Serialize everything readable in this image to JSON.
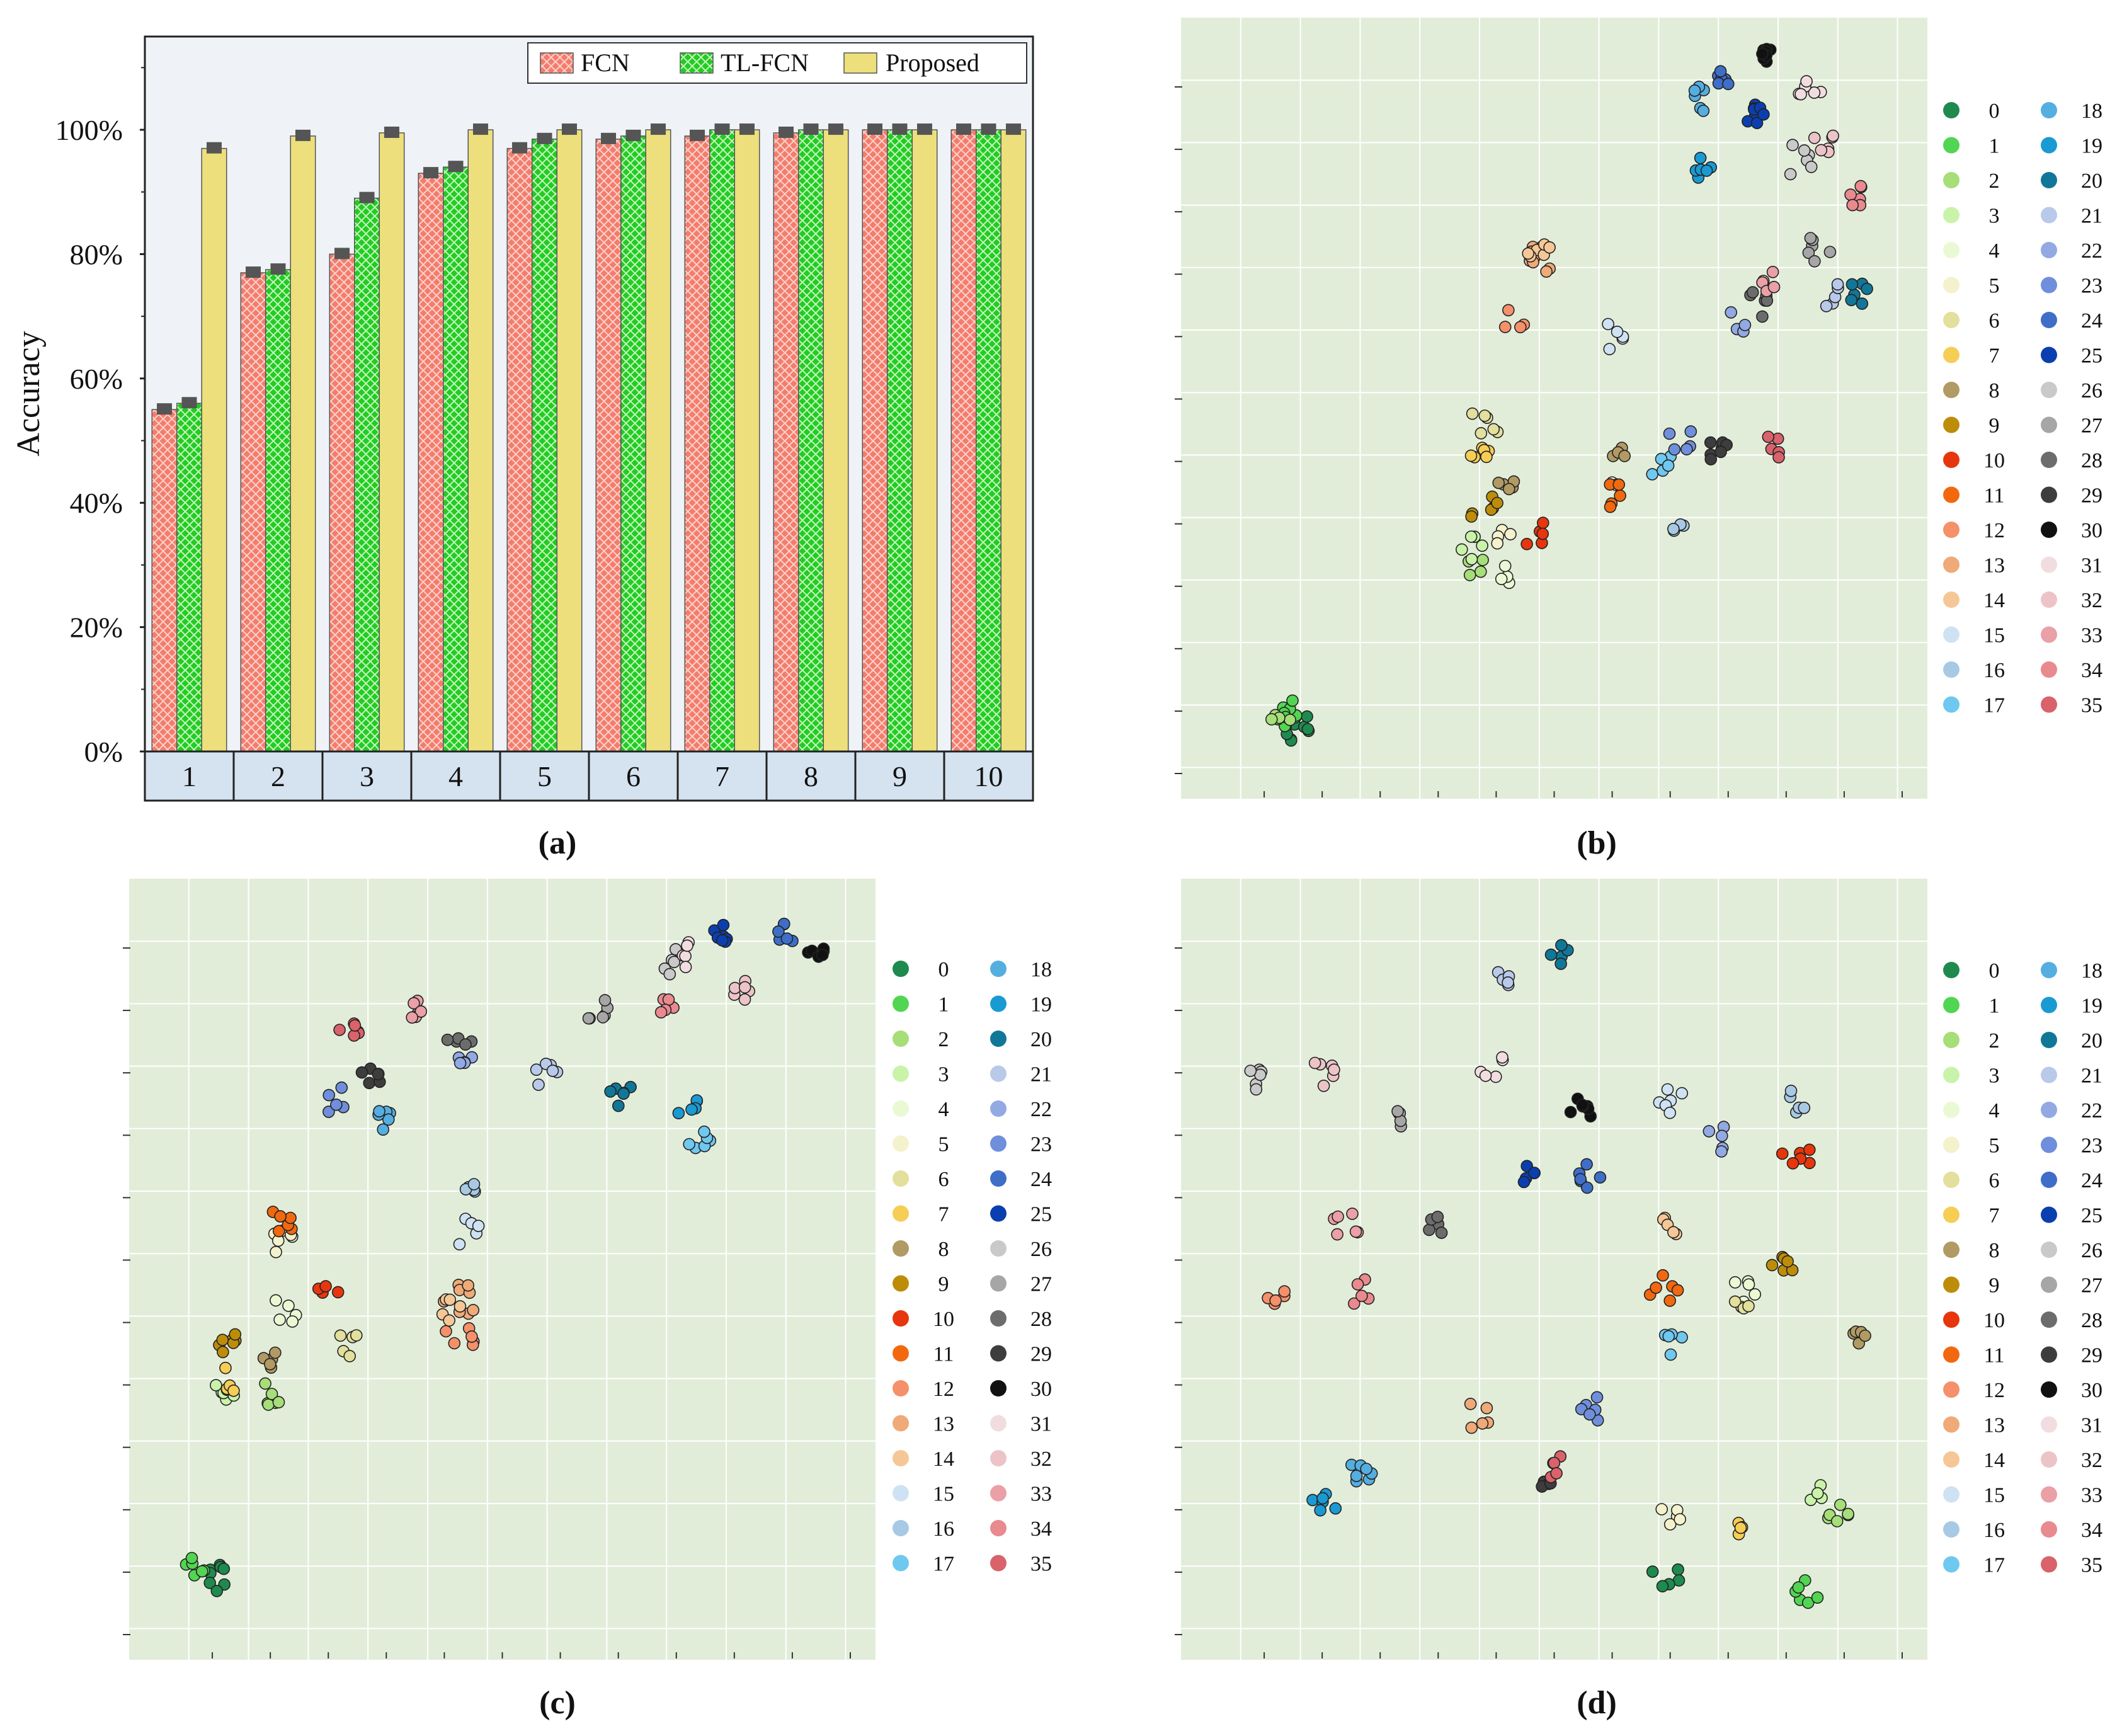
{
  "colors": {
    "fcn": "#f47c6c",
    "tl_fcn": "#22cc22",
    "proposed": "#ecdf7c",
    "plot_bg_a": "#eff3f7",
    "plot_bg_tsne": "#e2edd9",
    "xcell": "#d5e2ef",
    "errbar": "#555555"
  },
  "classes": [
    {
      "id": "0",
      "color": "#1e8a4e"
    },
    {
      "id": "1",
      "color": "#52d552"
    },
    {
      "id": "2",
      "color": "#a6de78"
    },
    {
      "id": "3",
      "color": "#c9f3a9"
    },
    {
      "id": "4",
      "color": "#e9f9d4"
    },
    {
      "id": "5",
      "color": "#f4f1cd"
    },
    {
      "id": "6",
      "color": "#e3df9c"
    },
    {
      "id": "7",
      "color": "#f6cd55"
    },
    {
      "id": "8",
      "color": "#b19a63"
    },
    {
      "id": "9",
      "color": "#bd8d0a"
    },
    {
      "id": "10",
      "color": "#e7360d"
    },
    {
      "id": "11",
      "color": "#f2680f"
    },
    {
      "id": "12",
      "color": "#f4906a"
    },
    {
      "id": "13",
      "color": "#efaa78"
    },
    {
      "id": "14",
      "color": "#f6c796"
    },
    {
      "id": "15",
      "color": "#cfe2f3"
    },
    {
      "id": "16",
      "color": "#a8c9e4"
    },
    {
      "id": "17",
      "color": "#6fc8ef"
    },
    {
      "id": "18",
      "color": "#55aee0"
    },
    {
      "id": "19",
      "color": "#1a9ad2"
    },
    {
      "id": "20",
      "color": "#107798"
    },
    {
      "id": "21",
      "color": "#b9c9ea"
    },
    {
      "id": "22",
      "color": "#92a9e3"
    },
    {
      "id": "23",
      "color": "#6f8fdc"
    },
    {
      "id": "24",
      "color": "#3e6ec8"
    },
    {
      "id": "25",
      "color": "#0b3fb0"
    },
    {
      "id": "26",
      "color": "#c9c9c9"
    },
    {
      "id": "27",
      "color": "#a6a6a6"
    },
    {
      "id": "28",
      "color": "#6c6c6c"
    },
    {
      "id": "29",
      "color": "#3d3d3d"
    },
    {
      "id": "30",
      "color": "#111111"
    },
    {
      "id": "31",
      "color": "#f1dde0"
    },
    {
      "id": "32",
      "color": "#ecc4c8"
    },
    {
      "id": "33",
      "color": "#eaa0a6"
    },
    {
      "id": "34",
      "color": "#e88a8e"
    },
    {
      "id": "35",
      "color": "#d9626b"
    }
  ],
  "panels": {
    "a": {
      "label": "(a)"
    },
    "b": {
      "label": "(b)"
    },
    "c": {
      "label": "(c)"
    },
    "d": {
      "label": "(d)"
    }
  },
  "chart_data": [
    {
      "type": "bar",
      "panel": "a",
      "title": "",
      "xlabel": "",
      "ylabel": "Accuracy",
      "categories": [
        "1",
        "2",
        "3",
        "4",
        "5",
        "6",
        "7",
        "8",
        "9",
        "10"
      ],
      "ylim": [
        0,
        1.15
      ],
      "yticks": [
        0,
        0.2,
        0.4,
        0.6,
        0.8,
        1.0
      ],
      "ytick_labels": [
        "0%",
        "20%",
        "40%",
        "60%",
        "80%",
        "100%"
      ],
      "legend_position": "top-right",
      "series": [
        {
          "name": "FCN",
          "values": [
            0.55,
            0.77,
            0.8,
            0.93,
            0.97,
            0.985,
            0.99,
            0.995,
            1.0,
            1.0
          ]
        },
        {
          "name": "TL-FCN",
          "values": [
            0.56,
            0.775,
            0.89,
            0.94,
            0.985,
            0.99,
            1.0,
            1.0,
            1.0,
            1.0
          ]
        },
        {
          "name": "Proposed",
          "values": [
            0.97,
            0.99,
            0.995,
            1.0,
            1.0,
            1.0,
            1.0,
            1.0,
            1.0,
            1.0
          ]
        }
      ]
    },
    {
      "type": "scatter",
      "panel": "b",
      "title": "",
      "xlabel": "",
      "ylabel": "",
      "xlim": [
        0,
        100
      ],
      "ylim": [
        0,
        100
      ],
      "legend_position": "right",
      "clusters": [
        {
          "cls": 0,
          "x": 13,
          "y": 6,
          "n": 9,
          "s": 1.5
        },
        {
          "cls": 1,
          "x": 12,
          "y": 8,
          "n": 9,
          "s": 1.5
        },
        {
          "cls": 2,
          "x": 11,
          "y": 7,
          "n": 4,
          "s": 1.2
        },
        {
          "cls": 2,
          "x": 39,
          "y": 28,
          "n": 4,
          "s": 1.2
        },
        {
          "cls": 3,
          "x": 38,
          "y": 31,
          "n": 5,
          "s": 1.3
        },
        {
          "cls": 4,
          "x": 44,
          "y": 27,
          "n": 4,
          "s": 1.3
        },
        {
          "cls": 5,
          "x": 43,
          "y": 32,
          "n": 4,
          "s": 1.3
        },
        {
          "cls": 5,
          "x": 58,
          "y": 41,
          "n": 3,
          "s": 1.2
        },
        {
          "cls": 6,
          "x": 40,
          "y": 48,
          "n": 6,
          "s": 1.5
        },
        {
          "cls": 7,
          "x": 40,
          "y": 44,
          "n": 6,
          "s": 1.5
        },
        {
          "cls": 8,
          "x": 43,
          "y": 40,
          "n": 5,
          "s": 1.2
        },
        {
          "cls": 8,
          "x": 59,
          "y": 44,
          "n": 4,
          "s": 1.1
        },
        {
          "cls": 9,
          "x": 40,
          "y": 36,
          "n": 6,
          "s": 1.4
        },
        {
          "cls": 10,
          "x": 47,
          "y": 33,
          "n": 5,
          "s": 1.2
        },
        {
          "cls": 11,
          "x": 59,
          "y": 38,
          "n": 5,
          "s": 1.3
        },
        {
          "cls": 12,
          "x": 44,
          "y": 62,
          "n": 4,
          "s": 1.1
        },
        {
          "cls": 13,
          "x": 47,
          "y": 70,
          "n": 8,
          "s": 1.6
        },
        {
          "cls": 14,
          "x": 48,
          "y": 72,
          "n": 6,
          "s": 1.5
        },
        {
          "cls": 15,
          "x": 58,
          "y": 60,
          "n": 5,
          "s": 1.4
        },
        {
          "cls": 16,
          "x": 67,
          "y": 34,
          "n": 4,
          "s": 1.4
        },
        {
          "cls": 17,
          "x": 65,
          "y": 42,
          "n": 5,
          "s": 1.5
        },
        {
          "cls": 18,
          "x": 71,
          "y": 92,
          "n": 6,
          "s": 1.3
        },
        {
          "cls": 19,
          "x": 71,
          "y": 83,
          "n": 6,
          "s": 1.1
        },
        {
          "cls": 20,
          "x": 94,
          "y": 66,
          "n": 6,
          "s": 1.2
        },
        {
          "cls": 21,
          "x": 89,
          "y": 66,
          "n": 5,
          "s": 1.3
        },
        {
          "cls": 22,
          "x": 76,
          "y": 62,
          "n": 4,
          "s": 1.2
        },
        {
          "cls": 23,
          "x": 68,
          "y": 46,
          "n": 5,
          "s": 1.3
        },
        {
          "cls": 24,
          "x": 75,
          "y": 95,
          "n": 6,
          "s": 1.2
        },
        {
          "cls": 25,
          "x": 79,
          "y": 90,
          "n": 8,
          "s": 1.0
        },
        {
          "cls": 26,
          "x": 85,
          "y": 84,
          "n": 6,
          "s": 1.4
        },
        {
          "cls": 27,
          "x": 88,
          "y": 72,
          "n": 6,
          "s": 1.3
        },
        {
          "cls": 28,
          "x": 79,
          "y": 64,
          "n": 6,
          "s": 1.3
        },
        {
          "cls": 29,
          "x": 74,
          "y": 44,
          "n": 7,
          "s": 1.3
        },
        {
          "cls": 30,
          "x": 80,
          "y": 98,
          "n": 8,
          "s": 1.0
        },
        {
          "cls": 31,
          "x": 87,
          "y": 93,
          "n": 6,
          "s": 1.2
        },
        {
          "cls": 32,
          "x": 89,
          "y": 86,
          "n": 6,
          "s": 1.2
        },
        {
          "cls": 33,
          "x": 81,
          "y": 67,
          "n": 5,
          "s": 1.1
        },
        {
          "cls": 34,
          "x": 93,
          "y": 79,
          "n": 6,
          "s": 1.1
        },
        {
          "cls": 35,
          "x": 82,
          "y": 45,
          "n": 5,
          "s": 1.1
        }
      ]
    },
    {
      "type": "scatter",
      "panel": "c",
      "title": "",
      "xlabel": "",
      "ylabel": "",
      "xlim": [
        0,
        100
      ],
      "ylim": [
        0,
        100
      ],
      "legend_position": "right",
      "clusters": [
        {
          "cls": 0,
          "x": 9,
          "y": 8,
          "n": 8,
          "s": 1.3
        },
        {
          "cls": 1,
          "x": 6,
          "y": 9,
          "n": 6,
          "s": 1.3
        },
        {
          "cls": 2,
          "x": 17,
          "y": 33,
          "n": 6,
          "s": 1.2
        },
        {
          "cls": 3,
          "x": 10,
          "y": 33,
          "n": 6,
          "s": 1.2
        },
        {
          "cls": 4,
          "x": 19,
          "y": 44,
          "n": 5,
          "s": 1.5
        },
        {
          "cls": 5,
          "x": 18,
          "y": 54,
          "n": 6,
          "s": 1.3
        },
        {
          "cls": 6,
          "x": 28,
          "y": 40,
          "n": 5,
          "s": 1.2
        },
        {
          "cls": 7,
          "x": 11,
          "y": 35,
          "n": 5,
          "s": 1.3
        },
        {
          "cls": 8,
          "x": 17,
          "y": 37,
          "n": 5,
          "s": 1.1
        },
        {
          "cls": 9,
          "x": 11,
          "y": 40,
          "n": 7,
          "s": 1.4
        },
        {
          "cls": 10,
          "x": 25,
          "y": 47,
          "n": 4,
          "s": 1.0
        },
        {
          "cls": 11,
          "x": 18,
          "y": 56,
          "n": 6,
          "s": 1.3
        },
        {
          "cls": 12,
          "x": 44,
          "y": 41,
          "n": 6,
          "s": 1.4
        },
        {
          "cls": 13,
          "x": 44,
          "y": 46,
          "n": 8,
          "s": 1.6
        },
        {
          "cls": 14,
          "x": 43,
          "y": 44,
          "n": 5,
          "s": 1.5
        },
        {
          "cls": 15,
          "x": 45,
          "y": 55,
          "n": 5,
          "s": 1.3
        },
        {
          "cls": 16,
          "x": 45,
          "y": 62,
          "n": 5,
          "s": 1.2
        },
        {
          "cls": 17,
          "x": 78,
          "y": 68,
          "n": 6,
          "s": 1.2
        },
        {
          "cls": 18,
          "x": 33,
          "y": 70,
          "n": 6,
          "s": 1.2
        },
        {
          "cls": 19,
          "x": 77,
          "y": 72,
          "n": 5,
          "s": 1.2
        },
        {
          "cls": 20,
          "x": 67,
          "y": 74,
          "n": 6,
          "s": 1.2
        },
        {
          "cls": 21,
          "x": 56,
          "y": 76,
          "n": 6,
          "s": 1.4
        },
        {
          "cls": 22,
          "x": 45,
          "y": 79,
          "n": 5,
          "s": 1.1
        },
        {
          "cls": 23,
          "x": 26,
          "y": 73,
          "n": 5,
          "s": 1.3
        },
        {
          "cls": 24,
          "x": 91,
          "y": 96,
          "n": 6,
          "s": 1.1
        },
        {
          "cls": 25,
          "x": 81,
          "y": 96,
          "n": 7,
          "s": 1.0
        },
        {
          "cls": 26,
          "x": 75,
          "y": 92,
          "n": 5,
          "s": 1.2
        },
        {
          "cls": 27,
          "x": 64,
          "y": 85,
          "n": 6,
          "s": 1.3
        },
        {
          "cls": 28,
          "x": 44,
          "y": 81,
          "n": 5,
          "s": 1.2
        },
        {
          "cls": 29,
          "x": 31,
          "y": 76,
          "n": 6,
          "s": 1.0
        },
        {
          "cls": 30,
          "x": 95,
          "y": 94,
          "n": 7,
          "s": 1.0
        },
        {
          "cls": 31,
          "x": 77,
          "y": 93,
          "n": 5,
          "s": 1.2
        },
        {
          "cls": 32,
          "x": 85,
          "y": 88,
          "n": 6,
          "s": 1.3
        },
        {
          "cls": 33,
          "x": 37,
          "y": 86,
          "n": 6,
          "s": 1.1
        },
        {
          "cls": 34,
          "x": 73,
          "y": 86,
          "n": 5,
          "s": 1.0
        },
        {
          "cls": 35,
          "x": 28,
          "y": 83,
          "n": 6,
          "s": 1.0
        }
      ]
    },
    {
      "type": "scatter",
      "panel": "d",
      "title": "",
      "xlabel": "",
      "ylabel": "",
      "xlim": [
        0,
        100
      ],
      "ylim": [
        0,
        100
      ],
      "legend_position": "right",
      "clusters": [
        {
          "cls": 0,
          "x": 66,
          "y": 8,
          "n": 5,
          "s": 1.5
        },
        {
          "cls": 1,
          "x": 86,
          "y": 6,
          "n": 6,
          "s": 1.3
        },
        {
          "cls": 2,
          "x": 90,
          "y": 16,
          "n": 6,
          "s": 1.5
        },
        {
          "cls": 3,
          "x": 88,
          "y": 20,
          "n": 4,
          "s": 1.3
        },
        {
          "cls": 4,
          "x": 77,
          "y": 47,
          "n": 5,
          "s": 1.2
        },
        {
          "cls": 5,
          "x": 67,
          "y": 16,
          "n": 5,
          "s": 1.4
        },
        {
          "cls": 6,
          "x": 77,
          "y": 46,
          "n": 4,
          "s": 1.0
        },
        {
          "cls": 7,
          "x": 77,
          "y": 15,
          "n": 4,
          "s": 1.0
        },
        {
          "cls": 8,
          "x": 94,
          "y": 41,
          "n": 5,
          "s": 1.0
        },
        {
          "cls": 9,
          "x": 83,
          "y": 51,
          "n": 6,
          "s": 1.1
        },
        {
          "cls": 10,
          "x": 85,
          "y": 66,
          "n": 6,
          "s": 1.4
        },
        {
          "cls": 11,
          "x": 66,
          "y": 47,
          "n": 6,
          "s": 1.5
        },
        {
          "cls": 12,
          "x": 10,
          "y": 47,
          "n": 5,
          "s": 1.1
        },
        {
          "cls": 13,
          "x": 39,
          "y": 30,
          "n": 5,
          "s": 1.2
        },
        {
          "cls": 14,
          "x": 66,
          "y": 55,
          "n": 5,
          "s": 1.3
        },
        {
          "cls": 15,
          "x": 67,
          "y": 73,
          "n": 6,
          "s": 1.2
        },
        {
          "cls": 16,
          "x": 85,
          "y": 73,
          "n": 5,
          "s": 1.2
        },
        {
          "cls": 17,
          "x": 67,
          "y": 40,
          "n": 5,
          "s": 1.1
        },
        {
          "cls": 18,
          "x": 22,
          "y": 23,
          "n": 7,
          "s": 1.4
        },
        {
          "cls": 19,
          "x": 17,
          "y": 18,
          "n": 6,
          "s": 1.2
        },
        {
          "cls": 20,
          "x": 51,
          "y": 93,
          "n": 5,
          "s": 1.0
        },
        {
          "cls": 21,
          "x": 42,
          "y": 90,
          "n": 5,
          "s": 1.2
        },
        {
          "cls": 22,
          "x": 74,
          "y": 68,
          "n": 5,
          "s": 1.3
        },
        {
          "cls": 23,
          "x": 56,
          "y": 31,
          "n": 6,
          "s": 1.4
        },
        {
          "cls": 24,
          "x": 55,
          "y": 63,
          "n": 6,
          "s": 1.2
        },
        {
          "cls": 25,
          "x": 46,
          "y": 63,
          "n": 5,
          "s": 1.0
        },
        {
          "cls": 26,
          "x": 7,
          "y": 76,
          "n": 6,
          "s": 1.1
        },
        {
          "cls": 27,
          "x": 28,
          "y": 71,
          "n": 5,
          "s": 1.0
        },
        {
          "cls": 28,
          "x": 33,
          "y": 56,
          "n": 5,
          "s": 1.2
        },
        {
          "cls": 29,
          "x": 48,
          "y": 20,
          "n": 6,
          "s": 1.1
        },
        {
          "cls": 30,
          "x": 54,
          "y": 72,
          "n": 7,
          "s": 1.1
        },
        {
          "cls": 31,
          "x": 41,
          "y": 78,
          "n": 5,
          "s": 1.2
        },
        {
          "cls": 32,
          "x": 17,
          "y": 77,
          "n": 6,
          "s": 1.2
        },
        {
          "cls": 33,
          "x": 20,
          "y": 56,
          "n": 6,
          "s": 1.3
        },
        {
          "cls": 34,
          "x": 22,
          "y": 47,
          "n": 5,
          "s": 1.2
        },
        {
          "cls": 35,
          "x": 50,
          "y": 23,
          "n": 5,
          "s": 1.2
        }
      ]
    }
  ]
}
